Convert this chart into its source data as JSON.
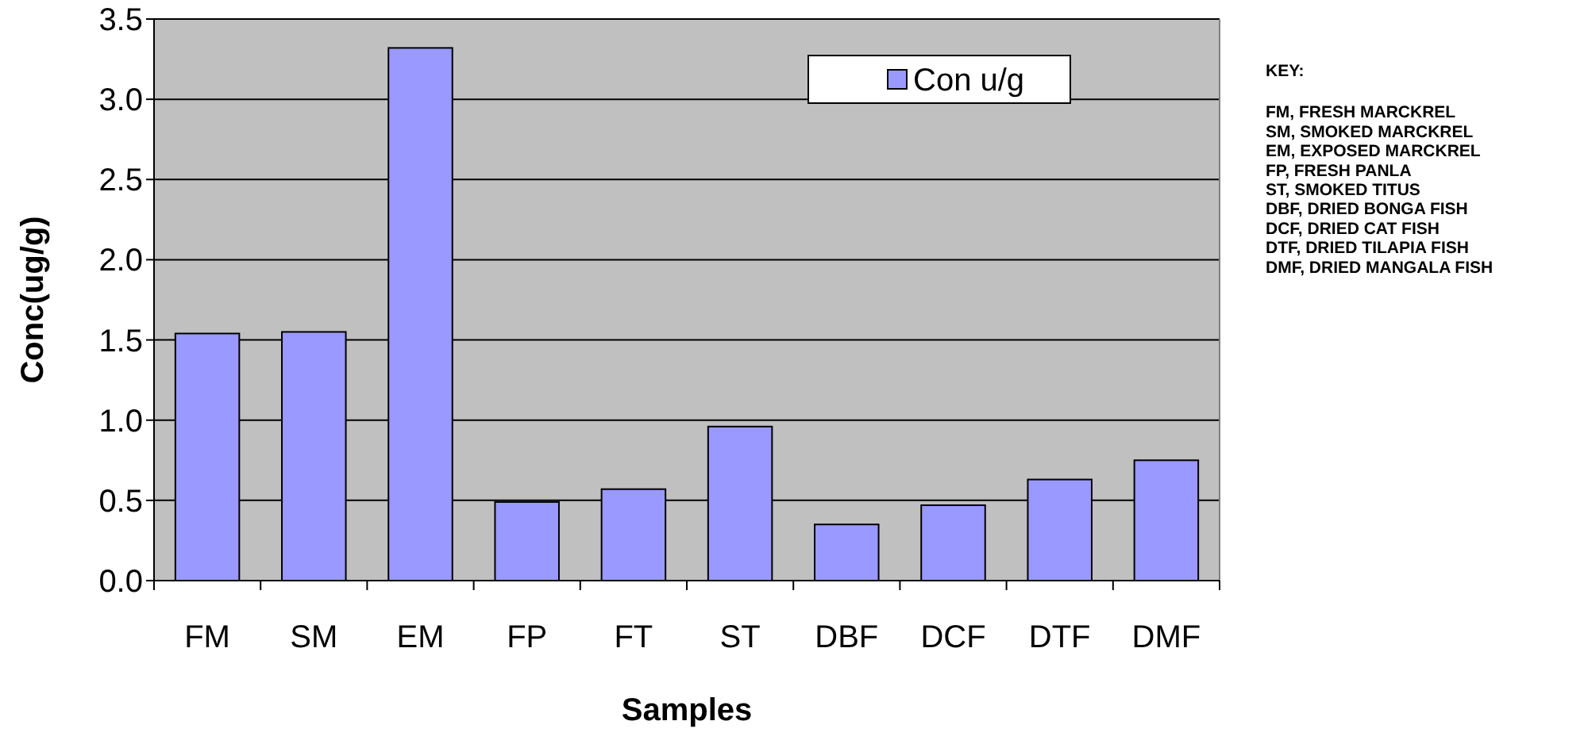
{
  "chart_data": {
    "type": "bar",
    "xlabel": "Samples",
    "ylabel": "Conc(ug/g)",
    "categories": [
      "FM",
      "SM",
      "EM",
      "FP",
      "FT",
      "ST",
      "DBF",
      "DCF",
      "DTF",
      "DMF"
    ],
    "series": [
      {
        "name": "Con u/g",
        "color": "#9999ff",
        "values": [
          1.54,
          1.55,
          3.32,
          0.49,
          0.57,
          0.96,
          0.35,
          0.47,
          0.63,
          0.75
        ]
      }
    ],
    "ylim": [
      0,
      3.5
    ],
    "yticks": [
      {
        "value": 0,
        "label": "0.0"
      },
      {
        "value": 0.5,
        "label": "0.5"
      },
      {
        "value": 1,
        "label": "1.0"
      },
      {
        "value": 1.5,
        "label": "1.5"
      },
      {
        "value": 2,
        "label": "2.0"
      },
      {
        "value": 2.5,
        "label": "2.5"
      },
      {
        "value": 3,
        "label": "3.0"
      },
      {
        "value": 3.5,
        "label": "3.5"
      }
    ],
    "grid": "y",
    "legend": "top right",
    "annotations": [
      "KEY:",
      "FM, FRESH MARCKREL",
      "SM, SMOKED MARCKREL",
      "EM, EXPOSED MARCKREL",
      "FP, FRESH PANLA",
      "ST, SMOKED TITUS",
      "DBF, DRIED BONGA FISH",
      "DCF, DRIED CAT FISH",
      "DTF, DRIED TILAPIA FISH",
      "DMF, DRIED MANGALA FISH"
    ]
  }
}
